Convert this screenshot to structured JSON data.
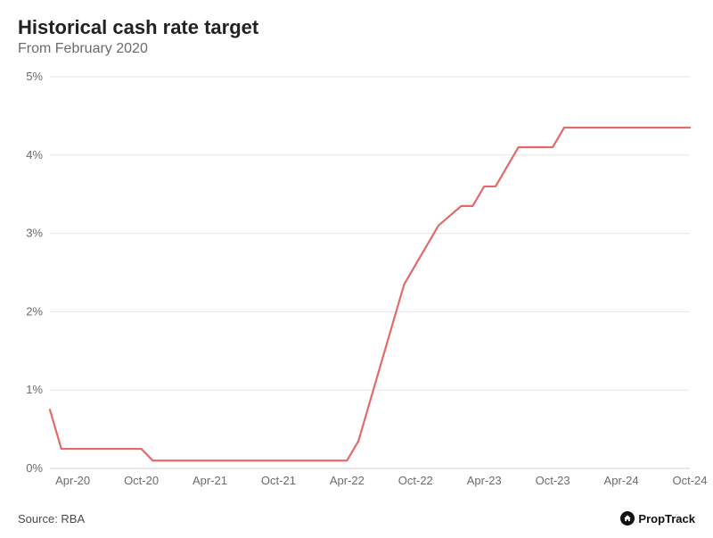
{
  "header": {
    "title": "Historical cash rate target",
    "subtitle": "From February 2020"
  },
  "footer": {
    "source_label": "Source: RBA",
    "brand": "PropTrack"
  },
  "chart": {
    "type": "line",
    "background_color": "#ffffff",
    "grid_color": "#e5e5e5",
    "baseline_color": "#cfcfcf",
    "axis_label_color": "#6b6b6b",
    "axis_font_size": 13,
    "title_fontsize": 22,
    "subtitle_fontsize": 16,
    "line_color": "#e26a6a",
    "line_width": 2.2,
    "y": {
      "min": 0,
      "max": 5,
      "tick_step": 1,
      "ticks": [
        {
          "v": 0,
          "label": "0%"
        },
        {
          "v": 1,
          "label": "1%"
        },
        {
          "v": 2,
          "label": "2%"
        },
        {
          "v": 3,
          "label": "3%"
        },
        {
          "v": 4,
          "label": "4%"
        },
        {
          "v": 5,
          "label": "5%"
        }
      ]
    },
    "x": {
      "min": 0,
      "max": 56,
      "tick_labels": [
        {
          "t": 2,
          "label": "Apr-20"
        },
        {
          "t": 8,
          "label": "Oct-20"
        },
        {
          "t": 14,
          "label": "Apr-21"
        },
        {
          "t": 20,
          "label": "Oct-21"
        },
        {
          "t": 26,
          "label": "Apr-22"
        },
        {
          "t": 32,
          "label": "Oct-22"
        },
        {
          "t": 38,
          "label": "Apr-23"
        },
        {
          "t": 44,
          "label": "Oct-23"
        },
        {
          "t": 50,
          "label": "Apr-24"
        },
        {
          "t": 56,
          "label": "Oct-24"
        }
      ]
    },
    "series": [
      {
        "t": 0,
        "v": 0.75
      },
      {
        "t": 1,
        "v": 0.25
      },
      {
        "t": 2,
        "v": 0.25
      },
      {
        "t": 6,
        "v": 0.25
      },
      {
        "t": 8,
        "v": 0.25
      },
      {
        "t": 9,
        "v": 0.1
      },
      {
        "t": 14,
        "v": 0.1
      },
      {
        "t": 20,
        "v": 0.1
      },
      {
        "t": 26,
        "v": 0.1
      },
      {
        "t": 27,
        "v": 0.35
      },
      {
        "t": 28,
        "v": 0.85
      },
      {
        "t": 29,
        "v": 1.35
      },
      {
        "t": 30,
        "v": 1.85
      },
      {
        "t": 31,
        "v": 2.35
      },
      {
        "t": 32,
        "v": 2.6
      },
      {
        "t": 33,
        "v": 2.85
      },
      {
        "t": 34,
        "v": 3.1
      },
      {
        "t": 36,
        "v": 3.35
      },
      {
        "t": 37,
        "v": 3.35
      },
      {
        "t": 38,
        "v": 3.6
      },
      {
        "t": 39,
        "v": 3.6
      },
      {
        "t": 40,
        "v": 3.85
      },
      {
        "t": 41,
        "v": 4.1
      },
      {
        "t": 44,
        "v": 4.1
      },
      {
        "t": 45,
        "v": 4.35
      },
      {
        "t": 50,
        "v": 4.35
      },
      {
        "t": 56,
        "v": 4.35
      }
    ]
  }
}
